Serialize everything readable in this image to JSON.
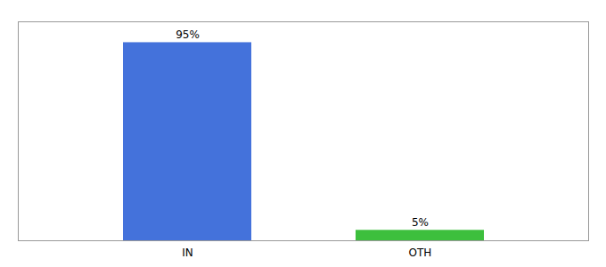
{
  "chart_data": {
    "type": "bar",
    "categories": [
      "IN",
      "OTH"
    ],
    "values": [
      95,
      5
    ],
    "value_labels": [
      "95%",
      "5%"
    ],
    "colors": [
      "#4472db",
      "#3dbf3d"
    ],
    "ylim": [
      0,
      105
    ],
    "data_labels": true,
    "tick_labels": "x"
  }
}
